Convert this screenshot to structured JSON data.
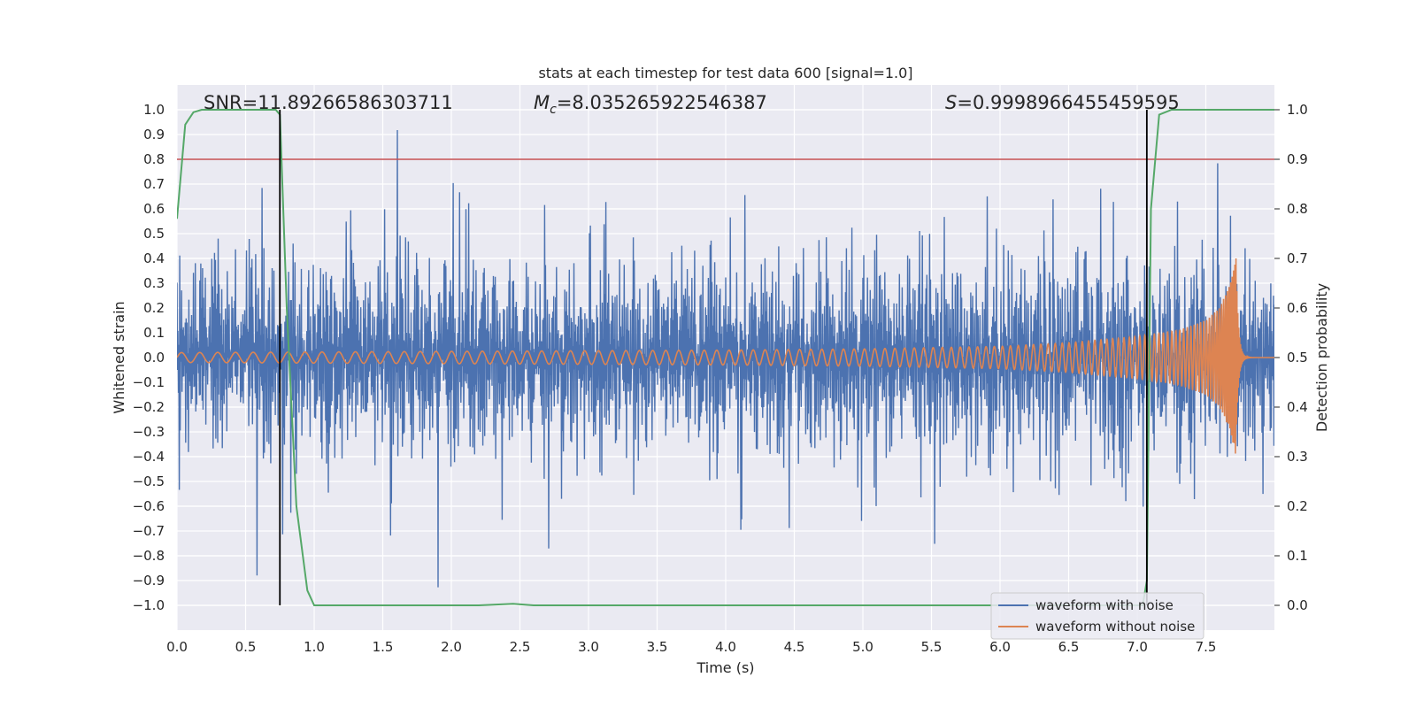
{
  "chart_data": {
    "type": "line",
    "title": "stats at each timestep for test data 600 [signal=1.0]",
    "xlabel": "Time (s)",
    "ylabel": "Whitened strain",
    "y2label": "Detection probability",
    "xlim": [
      0.0,
      8.0
    ],
    "ylim": [
      -1.1,
      1.1
    ],
    "y2lim": [
      -0.05,
      1.05
    ],
    "xticks": [
      0.0,
      0.5,
      1.0,
      1.5,
      2.0,
      2.5,
      3.0,
      3.5,
      4.0,
      4.5,
      5.0,
      5.5,
      6.0,
      6.5,
      7.0,
      7.5
    ],
    "xtick_labels": [
      "0.0",
      "0.5",
      "1.0",
      "1.5",
      "2.0",
      "2.5",
      "3.0",
      "3.5",
      "4.0",
      "4.5",
      "5.0",
      "5.5",
      "6.0",
      "6.5",
      "7.0",
      "7.5"
    ],
    "yticks": [
      -1.0,
      -0.9,
      -0.8,
      -0.7,
      -0.6,
      -0.5,
      -0.4,
      -0.3,
      -0.2,
      -0.1,
      0.0,
      0.1,
      0.2,
      0.3,
      0.4,
      0.5,
      0.6,
      0.7,
      0.8,
      0.9,
      1.0
    ],
    "ytick_labels": [
      "−1.0",
      "−0.9",
      "−0.8",
      "−0.7",
      "−0.6",
      "−0.5",
      "−0.4",
      "−0.3",
      "−0.2",
      "−0.1",
      "0.0",
      "0.1",
      "0.2",
      "0.3",
      "0.4",
      "0.5",
      "0.6",
      "0.7",
      "0.8",
      "0.9",
      "1.0"
    ],
    "y2ticks": [
      0.0,
      0.1,
      0.2,
      0.3,
      0.4,
      0.5,
      0.6,
      0.7,
      0.8,
      0.9,
      1.0
    ],
    "y2tick_labels": [
      "0.0",
      "0.1",
      "0.2",
      "0.3",
      "0.4",
      "0.5",
      "0.6",
      "0.7",
      "0.8",
      "0.9",
      "1.0"
    ],
    "annotations": {
      "snr": "SNR=11.89266586303711",
      "mc_symbol": "M",
      "mc_subscript": "c",
      "mc_value": "=8.035265922546387",
      "s_symbol": "S",
      "s_value": "=0.9998966455459595"
    },
    "threshold": {
      "axis": "y2",
      "value": 0.9,
      "color": "#c44e52"
    },
    "vlines": [
      {
        "x": 0.75,
        "y_from": -1.0,
        "y_to": 1.0,
        "color": "#000000"
      },
      {
        "x": 7.07,
        "y_from": -1.0,
        "y_to": 1.0,
        "color": "#000000"
      }
    ],
    "series": [
      {
        "name": "waveform with noise",
        "color": "#4c72b0",
        "kind": "noise",
        "envelope_x": [
          0.0,
          1.0,
          2.0,
          3.0,
          4.0,
          5.0,
          6.0,
          6.5,
          7.0,
          7.5,
          7.7,
          8.0
        ],
        "envelope_pos": [
          0.55,
          0.58,
          0.6,
          0.6,
          0.6,
          0.6,
          0.6,
          0.62,
          0.65,
          0.7,
          0.78,
          0.6
        ],
        "envelope_neg": [
          -0.55,
          -0.58,
          -0.6,
          -0.6,
          -0.6,
          -0.6,
          -0.6,
          -0.62,
          -0.65,
          -0.7,
          -0.75,
          -0.6
        ]
      },
      {
        "name": "waveform without noise",
        "color": "#dd8452",
        "kind": "chirp",
        "t_merge": 7.72,
        "amp_x": [
          0.0,
          2.0,
          4.0,
          5.0,
          6.0,
          6.5,
          7.0,
          7.3,
          7.5,
          7.6,
          7.68,
          7.72,
          8.0
        ],
        "amp_y": [
          0.02,
          0.025,
          0.03,
          0.035,
          0.045,
          0.06,
          0.085,
          0.11,
          0.15,
          0.2,
          0.3,
          0.4,
          0.0
        ]
      },
      {
        "name": "detection probability",
        "color": "#55a868",
        "axis": "y2",
        "x": [
          0.0,
          0.06,
          0.12,
          0.18,
          0.25,
          0.72,
          0.75,
          0.8,
          0.87,
          0.95,
          1.0,
          2.2,
          2.45,
          2.6,
          7.04,
          7.07,
          7.1,
          7.16,
          7.25,
          8.0
        ],
        "y": [
          0.78,
          0.97,
          0.995,
          1.0,
          1.0,
          1.0,
          0.99,
          0.6,
          0.2,
          0.03,
          0.0,
          0.0,
          0.003,
          0.0,
          0.0,
          0.05,
          0.8,
          0.99,
          1.0,
          1.0
        ]
      }
    ],
    "legend": {
      "position": "lower-right",
      "entries": [
        {
          "label": "waveform with noise",
          "color": "#4c72b0"
        },
        {
          "label": "waveform without noise",
          "color": "#dd8452"
        }
      ]
    }
  }
}
